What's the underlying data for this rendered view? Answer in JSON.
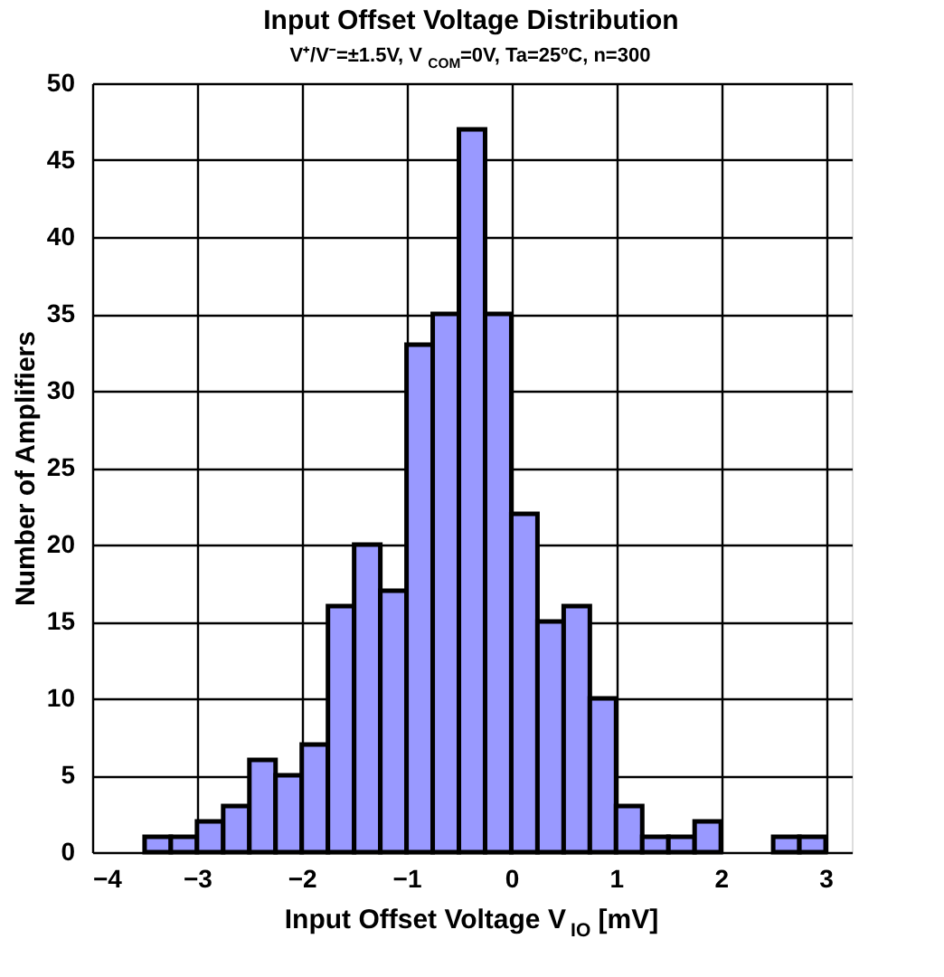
{
  "chart_data": {
    "type": "histogram",
    "title": "Input Offset Voltage Distribution",
    "subtitle": "V⁺/V⁻=±1.5V, V$_{COM}$=0V, Ta=25ºC, n=300",
    "xlabel": "Input Offset Voltage V$_{IO}$ [mV]",
    "ylabel": "Number of Amplifiers",
    "bins": [
      -3.5,
      -3.25,
      -3,
      -2.75,
      -2.5,
      -2.25,
      -2,
      -1.75,
      -1.5,
      -1.25,
      -1,
      -0.75,
      -0.5,
      -0.25,
      0,
      0.25,
      0.5,
      0.75,
      1,
      1.25,
      1.5,
      1.75,
      2,
      2.25,
      2.5,
      2.75,
      3
    ],
    "values": [
      1,
      1,
      2,
      3,
      6,
      5,
      7,
      16,
      20,
      17,
      33,
      35,
      47,
      35,
      22,
      15,
      16,
      10,
      3,
      1,
      1,
      2,
      null,
      null,
      1,
      1
    ],
    "color": "#9999ff",
    "xlim": [
      -4,
      3.25
    ],
    "xticks": [
      -4,
      -3,
      -2,
      -1,
      0,
      1,
      2,
      3
    ],
    "ylim": [
      0,
      50
    ],
    "yticks": [
      0,
      5,
      10,
      15,
      20,
      25,
      30,
      35,
      40,
      45,
      50
    ],
    "grid": true
  }
}
